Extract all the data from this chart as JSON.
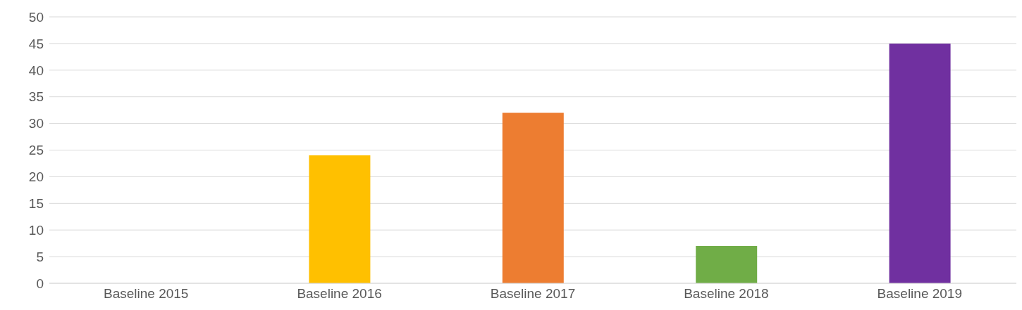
{
  "chart_data": {
    "type": "bar",
    "categories": [
      "Baseline 2015",
      "Baseline 2016",
      "Baseline 2017",
      "Baseline 2018",
      "Baseline 2019"
    ],
    "values": [
      0,
      24,
      32,
      7,
      45
    ],
    "colors": [
      "#4472c4",
      "#ffc000",
      "#ed7d31",
      "#70ad47",
      "#7030a0"
    ],
    "ylim": [
      0,
      50
    ],
    "yticks": [
      0,
      5,
      10,
      15,
      20,
      25,
      30,
      35,
      40,
      45,
      50
    ],
    "grid": "y"
  }
}
